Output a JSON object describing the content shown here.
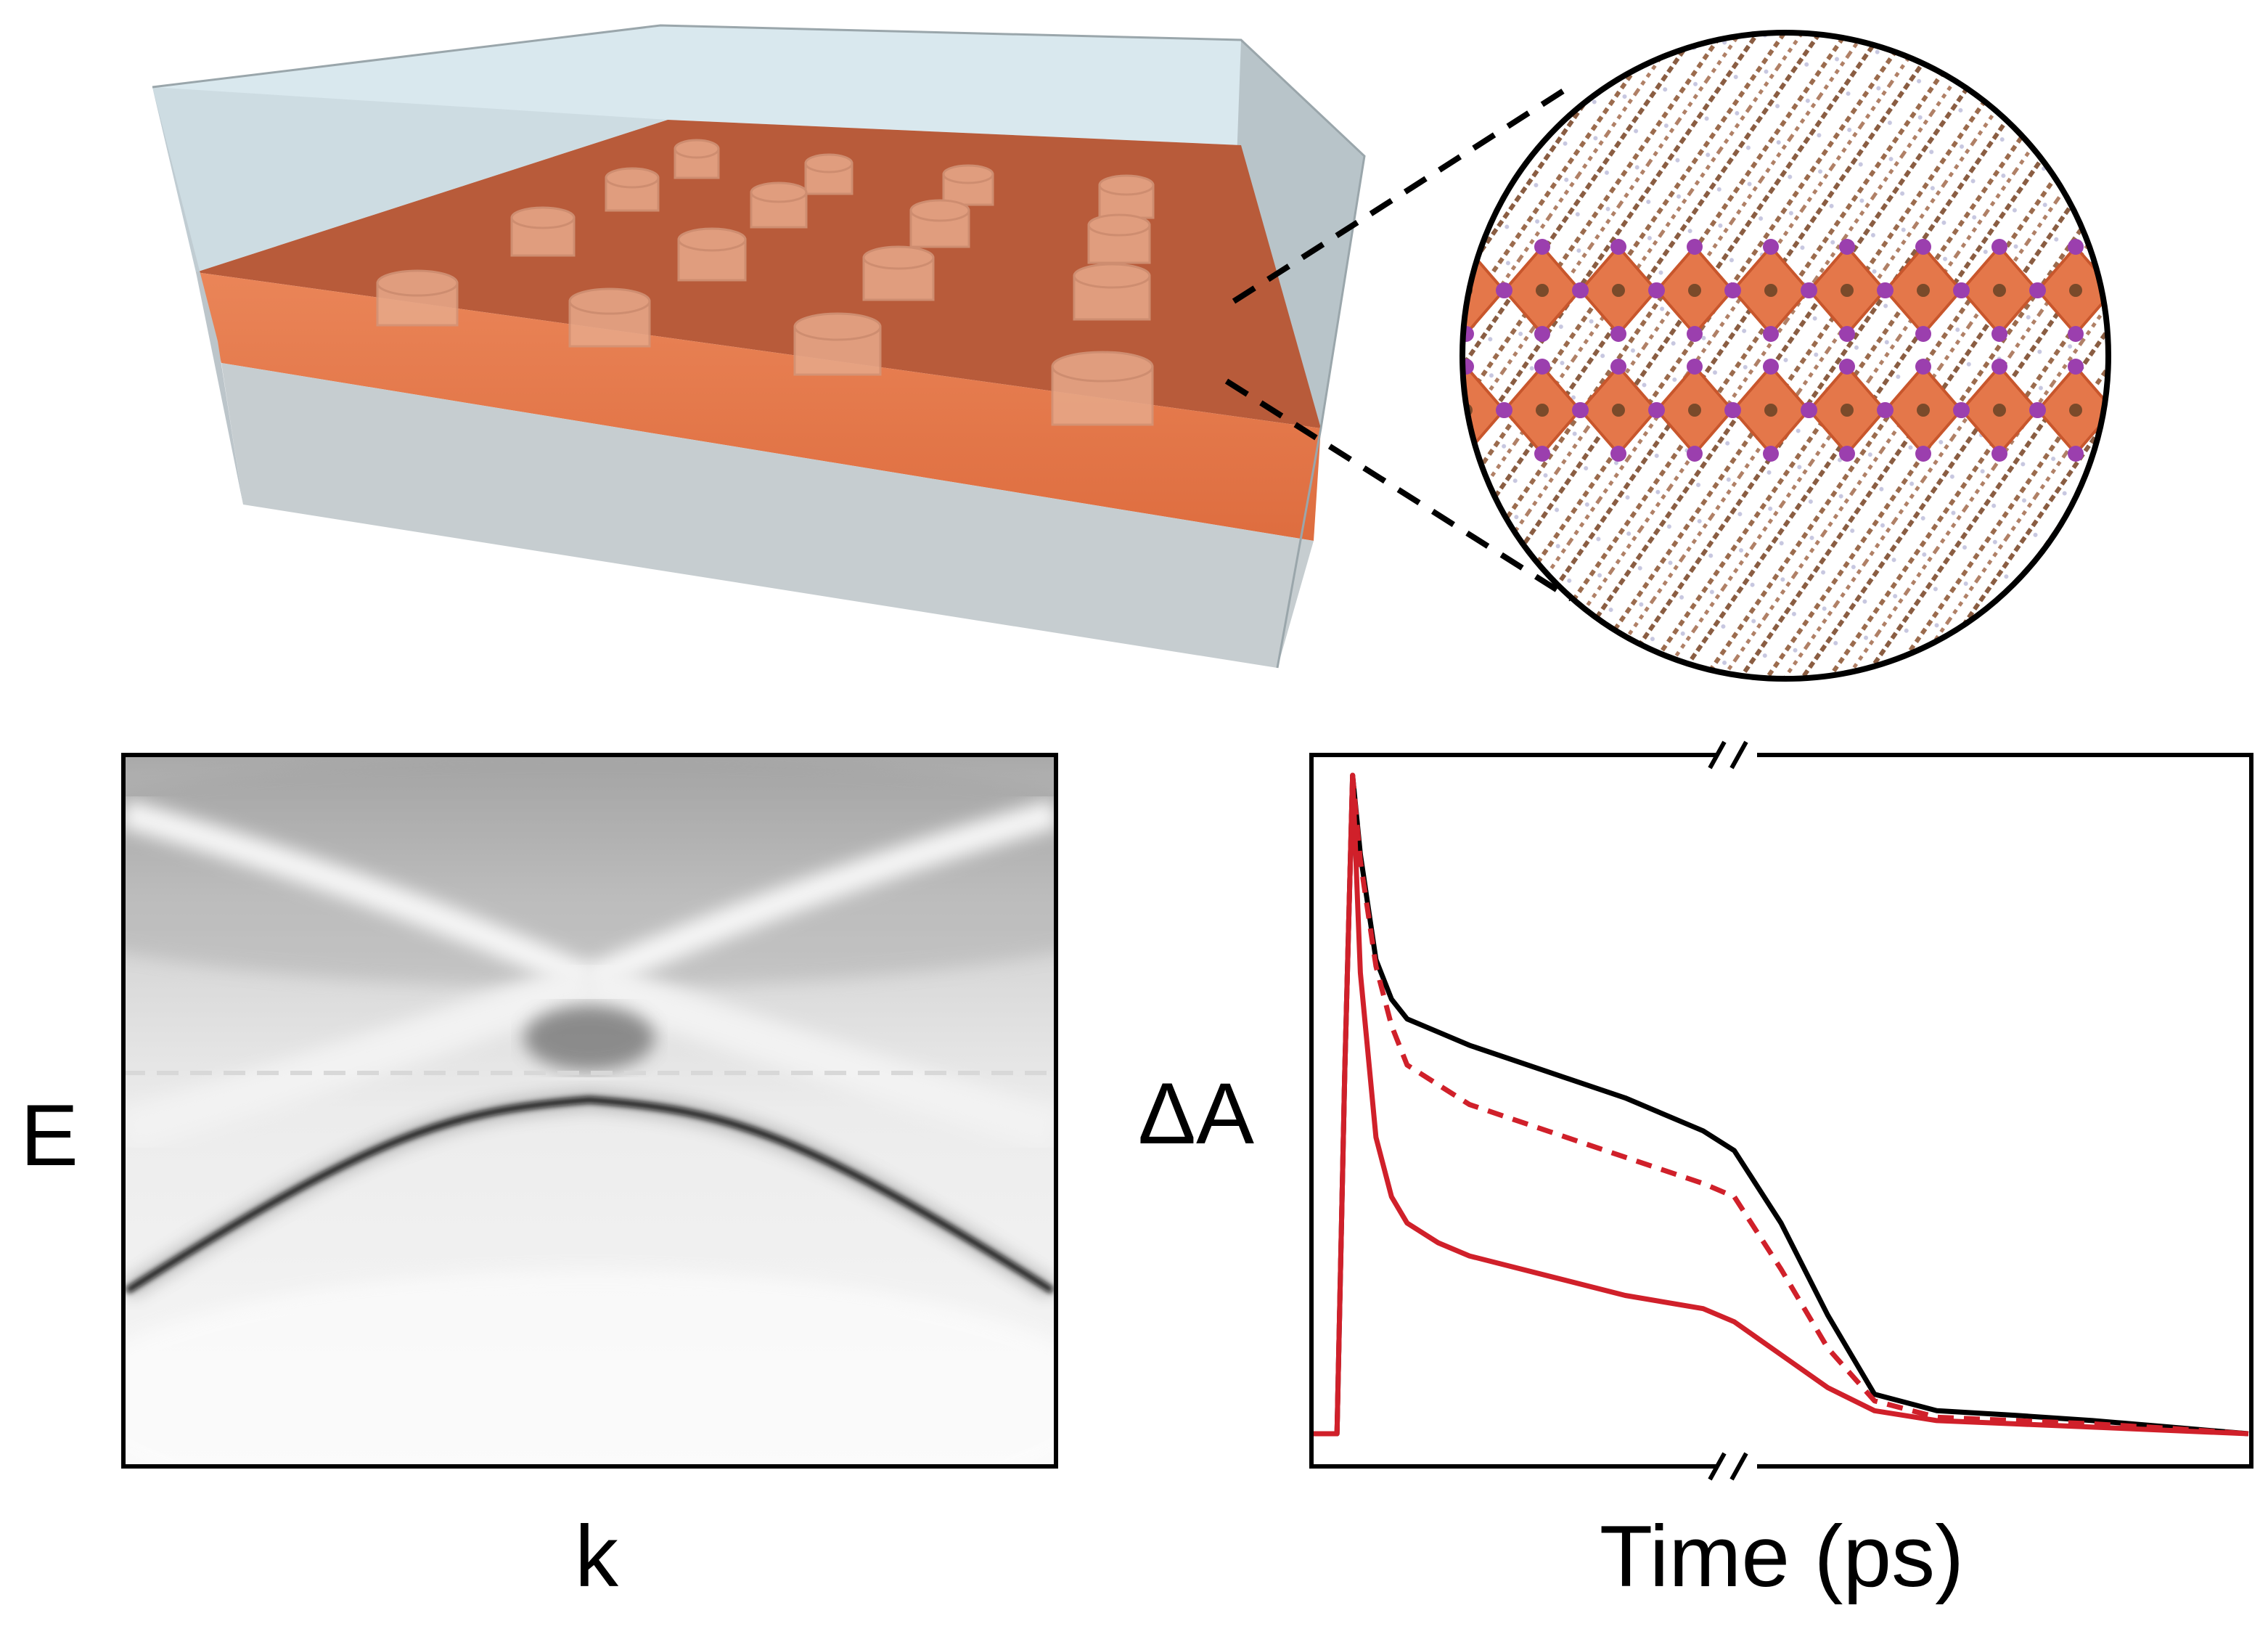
{
  "band_map": {
    "xlabel": "k",
    "ylabel": "E"
  },
  "chart_data": {
    "type": "line",
    "xlabel": "Time (ps)",
    "ylabel": "ΔA",
    "xaxis_break": true,
    "ticks_shown": false,
    "x": [
      0,
      1.5,
      2.0,
      2.5,
      3,
      4,
      5,
      6,
      8,
      10,
      15,
      20,
      25,
      27,
      30,
      33,
      36,
      40,
      45,
      50,
      55,
      60
    ],
    "series": [
      {
        "color": "#000000",
        "style": "solid",
        "values": [
          0.0,
          0.0,
          0.55,
          1.0,
          0.88,
          0.72,
          0.66,
          0.63,
          0.61,
          0.59,
          0.55,
          0.51,
          0.46,
          0.43,
          0.32,
          0.18,
          0.06,
          0.035,
          0.028,
          0.02,
          0.01,
          0.0
        ]
      },
      {
        "color": "#d0202a",
        "style": "dashed",
        "values": [
          0.0,
          0.0,
          0.55,
          1.0,
          0.87,
          0.71,
          0.62,
          0.56,
          0.53,
          0.5,
          0.46,
          0.42,
          0.38,
          0.36,
          0.25,
          0.13,
          0.05,
          0.025,
          0.02,
          0.015,
          0.008,
          0.0
        ]
      },
      {
        "color": "#d0202a",
        "style": "solid",
        "values": [
          0.0,
          0.0,
          0.55,
          1.0,
          0.7,
          0.45,
          0.36,
          0.32,
          0.29,
          0.27,
          0.24,
          0.21,
          0.19,
          0.17,
          0.12,
          0.07,
          0.035,
          0.02,
          0.015,
          0.01,
          0.005,
          0.0
        ]
      }
    ]
  },
  "colors": {
    "perovskite": "#e4774a",
    "glass": "#c9d3d8",
    "line_black": "#000000",
    "line_red": "#d0202a"
  }
}
